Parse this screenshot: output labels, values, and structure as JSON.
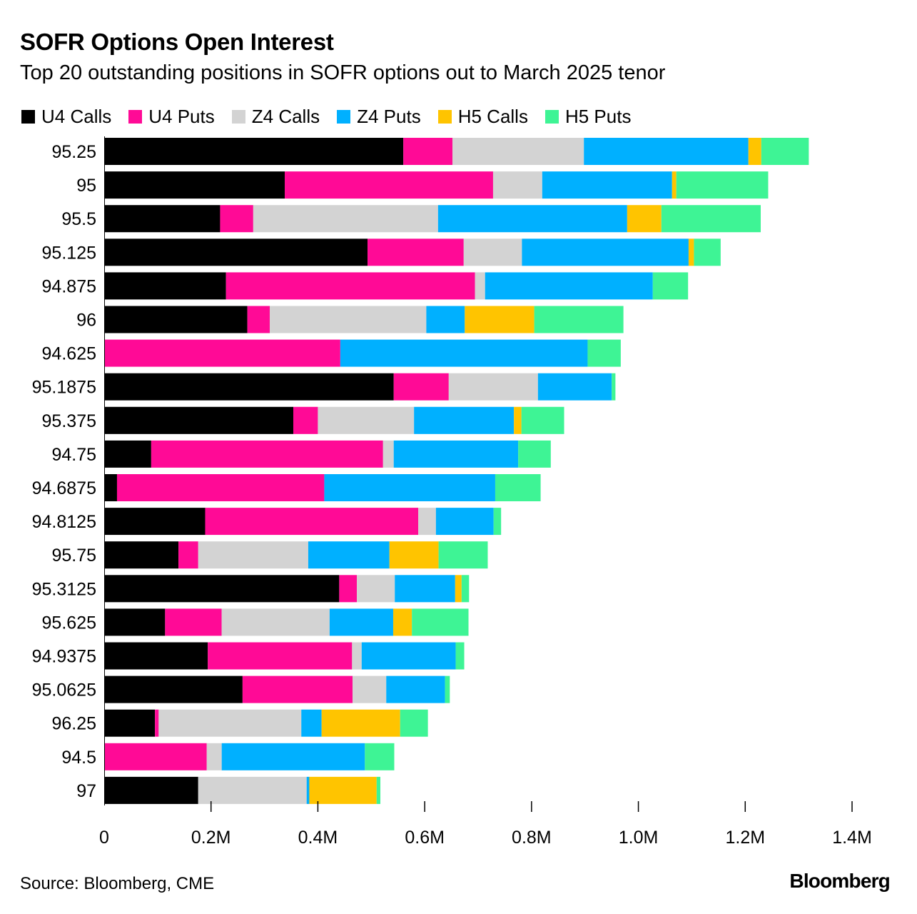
{
  "title": "SOFR Options Open Interest",
  "subtitle": "Top 20 outstanding positions in SOFR options out to March 2025 tenor",
  "source": "Source: Bloomberg, CME",
  "brand": "Bloomberg",
  "chart_data": {
    "type": "bar",
    "orientation": "horizontal",
    "stacked": true,
    "categories": [
      "95.25",
      "95",
      "95.5",
      "95.125",
      "94.875",
      "96",
      "94.625",
      "95.1875",
      "95.375",
      "94.75",
      "94.6875",
      "94.8125",
      "95.75",
      "95.3125",
      "95.625",
      "94.9375",
      "95.0625",
      "96.25",
      "94.5",
      "97"
    ],
    "series": [
      {
        "name": "U4 Calls",
        "color": "#000000",
        "values": [
          560000,
          338000,
          217000,
          493000,
          228000,
          268000,
          0,
          542000,
          354000,
          88000,
          24000,
          189000,
          139000,
          440000,
          114000,
          194000,
          259000,
          95000,
          0,
          176000
        ]
      },
      {
        "name": "U4 Puts",
        "color": "#ff0a96",
        "values": [
          92000,
          390000,
          62000,
          180000,
          466000,
          42000,
          442000,
          103000,
          46000,
          434000,
          388000,
          399000,
          37000,
          33000,
          106000,
          270000,
          206000,
          7000,
          192000,
          0
        ]
      },
      {
        "name": "Z4 Calls",
        "color": "#d3d3d3",
        "values": [
          246000,
          92000,
          346000,
          109000,
          19000,
          293000,
          0,
          167000,
          180000,
          20000,
          0,
          33000,
          206000,
          71000,
          202000,
          18000,
          63000,
          267000,
          28000,
          203000
        ]
      },
      {
        "name": "Z4 Puts",
        "color": "#00b0ff",
        "values": [
          308000,
          243000,
          354000,
          312000,
          314000,
          72000,
          463000,
          138000,
          187000,
          233000,
          320000,
          108000,
          152000,
          113000,
          119000,
          176000,
          110000,
          38000,
          268000,
          5000
        ]
      },
      {
        "name": "H5 Calls",
        "color": "#ffc400",
        "values": [
          24000,
          8000,
          64000,
          10000,
          0,
          130000,
          0,
          0,
          14000,
          0,
          0,
          0,
          92000,
          12000,
          35000,
          0,
          0,
          147000,
          0,
          126000
        ]
      },
      {
        "name": "H5 Puts",
        "color": "#3ef495",
        "values": [
          89000,
          172000,
          186000,
          50000,
          66000,
          167000,
          62000,
          7000,
          80000,
          61000,
          85000,
          14000,
          92000,
          14000,
          106000,
          16000,
          9000,
          52000,
          55000,
          7000
        ]
      }
    ],
    "xlim": [
      0,
      1400000
    ],
    "x_ticks": [
      0,
      200000,
      400000,
      600000,
      800000,
      1000000,
      1200000,
      1400000
    ],
    "x_tick_labels": [
      "0",
      "0.2M",
      "0.4M",
      "0.6M",
      "0.8M",
      "1.0M",
      "1.2M",
      "1.4M"
    ],
    "grid": false,
    "legend_position": "top"
  }
}
